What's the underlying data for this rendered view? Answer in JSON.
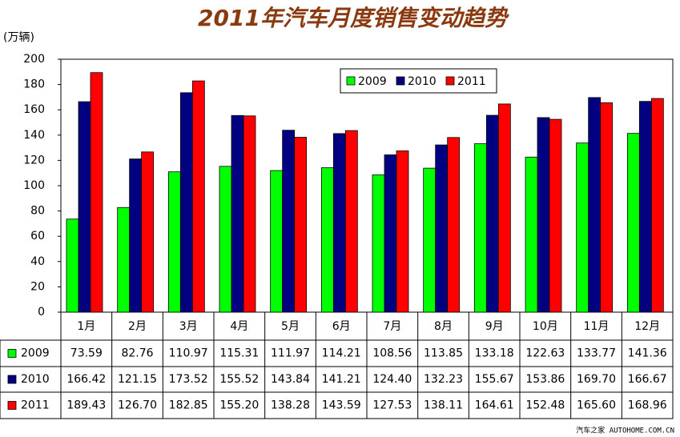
{
  "chart_data": {
    "type": "bar",
    "title": "2011年汽车月度销售变动趋势",
    "y_label": "(万辆)",
    "categories": [
      "1月",
      "2月",
      "3月",
      "4月",
      "5月",
      "6月",
      "7月",
      "8月",
      "9月",
      "10月",
      "11月",
      "12月"
    ],
    "series": [
      {
        "name": "2009",
        "color": "#00ff00",
        "values": [
          73.59,
          82.76,
          110.97,
          115.31,
          111.97,
          114.21,
          108.56,
          113.85,
          133.18,
          122.63,
          133.77,
          141.36
        ],
        "value_labels": [
          "73.59",
          "82.76",
          "110.97",
          "115.31",
          "111.97",
          "114.21",
          "108.56",
          "113.85",
          "133.18",
          "122.63",
          "133.77",
          "141.36"
        ]
      },
      {
        "name": "2010",
        "color": "#000080",
        "values": [
          166.42,
          121.15,
          173.52,
          155.52,
          143.84,
          141.21,
          124.4,
          132.23,
          155.67,
          153.86,
          169.7,
          166.67
        ],
        "value_labels": [
          "166.42",
          "121.15",
          "173.52",
          "155.52",
          "143.84",
          "141.21",
          "124.40",
          "132.23",
          "155.67",
          "153.86",
          "169.70",
          "166.67"
        ]
      },
      {
        "name": "2011",
        "color": "#ff0000",
        "values": [
          189.43,
          126.7,
          182.85,
          155.2,
          138.28,
          143.59,
          127.53,
          138.11,
          164.61,
          152.48,
          165.6,
          168.96
        ],
        "value_labels": [
          "189.43",
          "126.70",
          "182.85",
          "155.20",
          "138.28",
          "143.59",
          "127.53",
          "138.11",
          "164.61",
          "152.48",
          "165.60",
          "168.96"
        ]
      }
    ],
    "ylim": [
      0,
      200
    ],
    "yticks": [
      0,
      20,
      40,
      60,
      80,
      100,
      120,
      140,
      160,
      180,
      200
    ],
    "source": "汽车之家 AUTOHOME.COM.CN"
  }
}
